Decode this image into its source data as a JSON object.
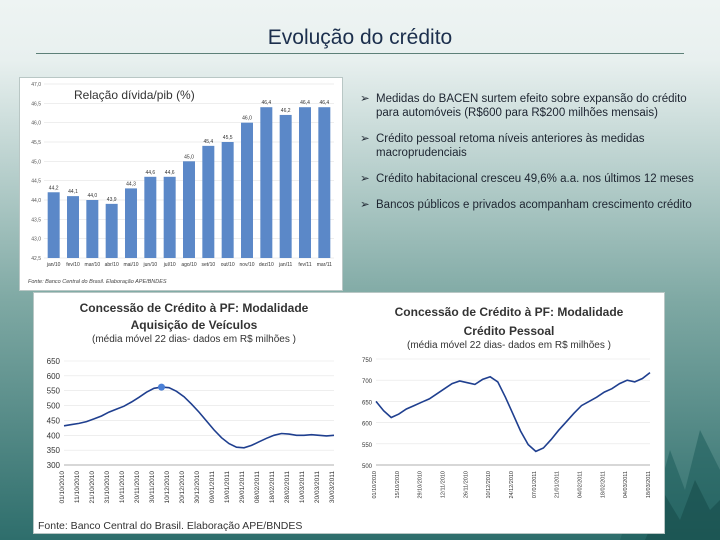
{
  "slide": {
    "title": "Evolução do crédito"
  },
  "bars_panel": {
    "caption": "Relação dívida/pib (%)",
    "source": "Fonte: Banco Central do Brasil. Elaboração APE/BNDES"
  },
  "bullets": [
    {
      "icon": "arrow-bullet-icon",
      "text": "Medidas do BACEN surtem efeito sobre expansão do crédito para automóveis (R$600 para R$200 milhões mensais)"
    },
    {
      "icon": "arrow-bullet-icon",
      "text": "Crédito pessoal retoma níveis anteriores às medidas macroprudenciais"
    },
    {
      "icon": "arrow-bullet-icon",
      "text": "Crédito habitacional cresceu 49,6% a.a. nos últimos 12 meses"
    },
    {
      "icon": "arrow-bullet-icon",
      "text": "Bancos públicos e privados acompanham crescimento crédito"
    }
  ],
  "bottom_panel": {
    "left_title_line1": "Concessão de Crédito à PF: Modalidade",
    "left_title_line2": "Aquisição de Veículos",
    "left_subtitle": "(média móvel 22 dias- dados em R$ milhões )",
    "right_title_line1": "Concessão de Crédito à PF: Modalidade",
    "right_title_line2": "Crédito Pessoal",
    "right_subtitle": "(média móvel 22 dias- dados em R$ milhões )",
    "source": "Fonte: Banco Central do Brasil. Elaboração APE/BNDES"
  },
  "colors": {
    "bar": "#5b88c8",
    "line": "#1f3f8f",
    "marker": "#4a7fd6",
    "grid": "#dddddd"
  },
  "chart_data": [
    {
      "type": "bar",
      "title": "Relação dívida/pib (%)",
      "categories": [
        "jan/10",
        "fev/10",
        "mar/10",
        "abr/10",
        "mai/10",
        "jun/10",
        "jul/10",
        "ago/10",
        "set/10",
        "out/10",
        "nov/10",
        "dez/10",
        "jan/11",
        "fev/11",
        "mar/11"
      ],
      "values": [
        44.2,
        44.1,
        44.0,
        43.9,
        44.3,
        44.6,
        44.6,
        45.0,
        45.4,
        45.5,
        46.0,
        46.4,
        46.2,
        46.4,
        46.4
      ],
      "value_labels": [
        "44,2",
        "44,1",
        "44,0",
        "43,9",
        "44,3",
        "44,6",
        "44,6",
        "45,0",
        "45,4",
        "45,5",
        "46,0",
        "46,4",
        "46,2",
        "46,4",
        "46,4"
      ],
      "yticks": [
        "42,5",
        "43,0",
        "43,5",
        "44,0",
        "44,5",
        "45,0",
        "45,5",
        "46,0",
        "46,5",
        "47,0"
      ],
      "ylim": [
        42.5,
        47.0
      ]
    },
    {
      "type": "line",
      "title": "Concessão de Crédito à PF: Modalidade Aquisição de Veículos",
      "ylabel": "R$ milhões",
      "ylim": [
        300,
        650
      ],
      "yticks": [
        300,
        350,
        400,
        450,
        500,
        550,
        600,
        650
      ],
      "xticks": [
        "01/10/2010",
        "11/10/2010",
        "21/10/2010",
        "31/10/2010",
        "10/11/2010",
        "20/11/2010",
        "30/11/2010",
        "10/12/2010",
        "20/12/2010",
        "30/12/2010",
        "09/01/2011",
        "19/01/2011",
        "29/01/2011",
        "08/02/2011",
        "18/02/2011",
        "28/02/2011",
        "10/03/2011",
        "20/03/2011",
        "30/03/2011"
      ],
      "x": [
        0,
        1,
        2,
        3,
        4,
        5,
        6,
        7,
        8,
        9,
        10,
        11,
        12,
        13,
        14,
        15,
        16,
        17,
        18,
        19,
        20,
        21,
        22,
        23,
        24,
        25,
        26,
        27,
        28,
        29,
        30,
        31,
        32,
        33,
        34,
        35,
        36
      ],
      "values": [
        432,
        436,
        440,
        446,
        455,
        465,
        478,
        488,
        498,
        512,
        528,
        545,
        558,
        562,
        560,
        548,
        530,
        505,
        478,
        448,
        418,
        392,
        372,
        360,
        358,
        366,
        378,
        390,
        400,
        406,
        404,
        400,
        400,
        402,
        400,
        398,
        400
      ],
      "highlight_index": 13
    },
    {
      "type": "line",
      "title": "Concessão de Crédito à PF: Modalidade Crédito Pessoal",
      "ylabel": "R$ milhões",
      "ylim": [
        500,
        750
      ],
      "yticks": [
        500,
        550,
        600,
        650,
        700,
        750
      ],
      "xticks": [
        "01/10/2010",
        "15/10/2010",
        "29/10/2010",
        "12/11/2010",
        "26/11/2010",
        "10/12/2010",
        "24/12/2010",
        "07/01/2011",
        "21/01/2011",
        "04/02/2011",
        "18/02/2011",
        "04/03/2011",
        "18/03/2011"
      ],
      "x": [
        0,
        1,
        2,
        3,
        4,
        5,
        6,
        7,
        8,
        9,
        10,
        11,
        12,
        13,
        14,
        15,
        16,
        17,
        18,
        19,
        20,
        21,
        22,
        23,
        24,
        25,
        26,
        27,
        28,
        29,
        30,
        31,
        32,
        33,
        34,
        35,
        36
      ],
      "values": [
        650,
        628,
        612,
        620,
        632,
        640,
        648,
        656,
        668,
        680,
        692,
        698,
        694,
        690,
        702,
        708,
        696,
        660,
        620,
        580,
        548,
        532,
        540,
        560,
        582,
        602,
        622,
        640,
        650,
        660,
        672,
        680,
        692,
        700,
        696,
        704,
        718
      ]
    }
  ]
}
